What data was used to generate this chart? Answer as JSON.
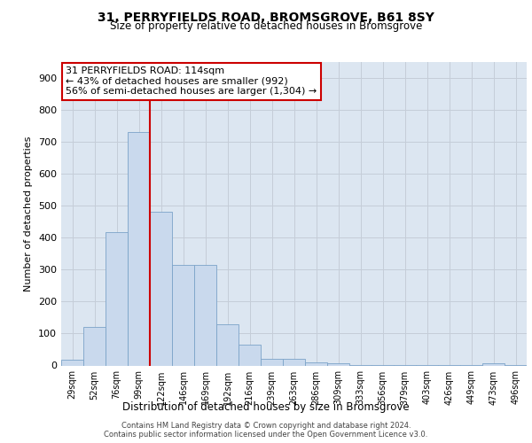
{
  "title_line1": "31, PERRYFIELDS ROAD, BROMSGROVE, B61 8SY",
  "title_line2": "Size of property relative to detached houses in Bromsgrove",
  "xlabel": "Distribution of detached houses by size in Bromsgrove",
  "ylabel": "Number of detached properties",
  "categories": [
    "29sqm",
    "52sqm",
    "76sqm",
    "99sqm",
    "122sqm",
    "146sqm",
    "169sqm",
    "192sqm",
    "216sqm",
    "239sqm",
    "263sqm",
    "286sqm",
    "309sqm",
    "333sqm",
    "356sqm",
    "379sqm",
    "403sqm",
    "426sqm",
    "449sqm",
    "473sqm",
    "496sqm"
  ],
  "values": [
    18,
    122,
    418,
    730,
    480,
    315,
    315,
    130,
    65,
    22,
    20,
    10,
    6,
    2,
    2,
    2,
    2,
    2,
    2,
    8,
    2
  ],
  "bar_color": "#c9d9ed",
  "bar_edge_color": "#7ba3c8",
  "grid_color": "#c5cdd8",
  "background_color": "#dce6f1",
  "annotation_line1": "31 PERRYFIELDS ROAD: 114sqm",
  "annotation_line2": "← 43% of detached houses are smaller (992)",
  "annotation_line3": "56% of semi-detached houses are larger (1,304) →",
  "vline_x": 3.5,
  "vline_color": "#cc0000",
  "annotation_box_color": "#ffffff",
  "annotation_box_edge_color": "#cc0000",
  "ylim": [
    0,
    950
  ],
  "yticks": [
    0,
    100,
    200,
    300,
    400,
    500,
    600,
    700,
    800,
    900
  ],
  "footer_line1": "Contains HM Land Registry data © Crown copyright and database right 2024.",
  "footer_line2": "Contains public sector information licensed under the Open Government Licence v3.0."
}
